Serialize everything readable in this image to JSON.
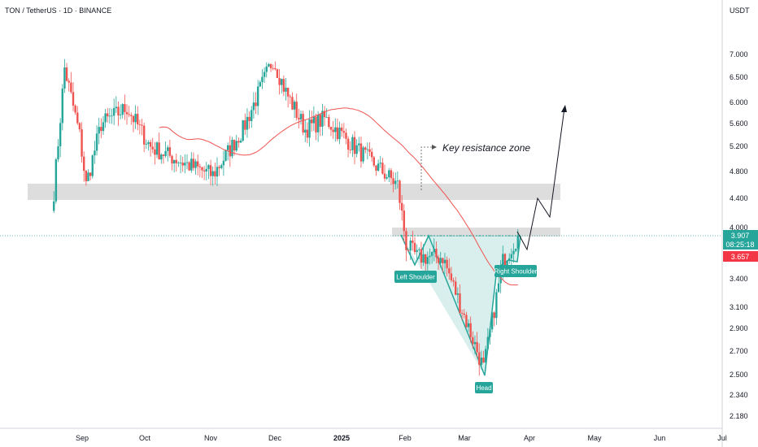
{
  "header": {
    "symbol_title": "TON / TetherUS · 1D · BINANCE",
    "currency": "USDT"
  },
  "price_scale": {
    "ticks": [
      "7.000",
      "6.500",
      "6.000",
      "5.600",
      "5.200",
      "4.800",
      "4.400",
      "4.000",
      "3.400",
      "3.100",
      "2.900",
      "2.700",
      "2.500",
      "2.340",
      "2.180"
    ],
    "current_price": "3.907",
    "countdown": "08:25:18",
    "ma_value": "3.657"
  },
  "time_scale": {
    "ticks": [
      {
        "label": "Sep",
        "bold": false
      },
      {
        "label": "Oct",
        "bold": false
      },
      {
        "label": "Nov",
        "bold": false
      },
      {
        "label": "Dec",
        "bold": false
      },
      {
        "label": "2025",
        "bold": true
      },
      {
        "label": "Feb",
        "bold": false
      },
      {
        "label": "Mar",
        "bold": false
      },
      {
        "label": "Apr",
        "bold": false
      },
      {
        "label": "May",
        "bold": false
      },
      {
        "label": "Jun",
        "bold": false
      },
      {
        "label": "Jul",
        "bold": false
      }
    ]
  },
  "annotations": {
    "key_resistance": "Key resistance zone",
    "left_shoulder": "Left Shoulder",
    "head": "Head",
    "right_shoulder": "Right Shoulder"
  },
  "colors": {
    "up": "#26a69a",
    "down": "#ef5350",
    "ma": "#ef5350",
    "pattern": "#26a69a",
    "zone": "#d9d9d9",
    "price_tag": "#26a69a",
    "ma_tag": "#f23645"
  },
  "chart_data": {
    "type": "candlestick",
    "title": "TON / TetherUS · 1D · BINANCE",
    "y_unit": "USDT",
    "y_scale": "log",
    "last_price": 3.907,
    "moving_average_last": 3.657,
    "resistance_zones": [
      {
        "low": 4.4,
        "high": 4.62,
        "label": ""
      },
      {
        "low": 3.92,
        "high": 4.02,
        "label": ""
      }
    ],
    "key_resistance_zone": "Key resistance zone",
    "pattern": {
      "name": "inverse head and shoulders",
      "left_shoulder": 3.62,
      "head": 2.5,
      "right_shoulder": 3.66,
      "neckline": 3.92
    },
    "approx_path": [
      {
        "date": "2024-08-23",
        "price": 4.5
      },
      {
        "date": "2024-08-28",
        "price": 6.7
      },
      {
        "date": "2024-09-04",
        "price": 5.4
      },
      {
        "date": "2024-09-07",
        "price": 4.6
      },
      {
        "date": "2024-09-14",
        "price": 5.6
      },
      {
        "date": "2024-09-26",
        "price": 5.9
      },
      {
        "date": "2024-10-07",
        "price": 5.2
      },
      {
        "date": "2024-10-25",
        "price": 4.9
      },
      {
        "date": "2024-11-05",
        "price": 4.75
      },
      {
        "date": "2024-11-19",
        "price": 5.5
      },
      {
        "date": "2024-12-03",
        "price": 6.9
      },
      {
        "date": "2024-12-09",
        "price": 6.2
      },
      {
        "date": "2024-12-18",
        "price": 5.5
      },
      {
        "date": "2024-12-27",
        "price": 5.7
      },
      {
        "date": "2025-01-10",
        "price": 5.2
      },
      {
        "date": "2025-01-30",
        "price": 4.6
      },
      {
        "date": "2025-02-03",
        "price": 3.8
      },
      {
        "date": "2025-02-08",
        "price": 3.65
      },
      {
        "date": "2025-02-20",
        "price": 3.65
      },
      {
        "date": "2025-03-11",
        "price": 2.55
      },
      {
        "date": "2025-03-20",
        "price": 3.6
      },
      {
        "date": "2025-03-27",
        "price": 3.907
      }
    ],
    "projection": [
      {
        "date": "2025-03-27",
        "price": 3.907
      },
      {
        "date": "2025-04-03",
        "price": 3.62
      },
      {
        "date": "2025-04-12",
        "price": 4.4
      },
      {
        "date": "2025-04-15",
        "price": 4.2
      },
      {
        "date": "2025-04-23",
        "price": 5.9
      }
    ]
  }
}
